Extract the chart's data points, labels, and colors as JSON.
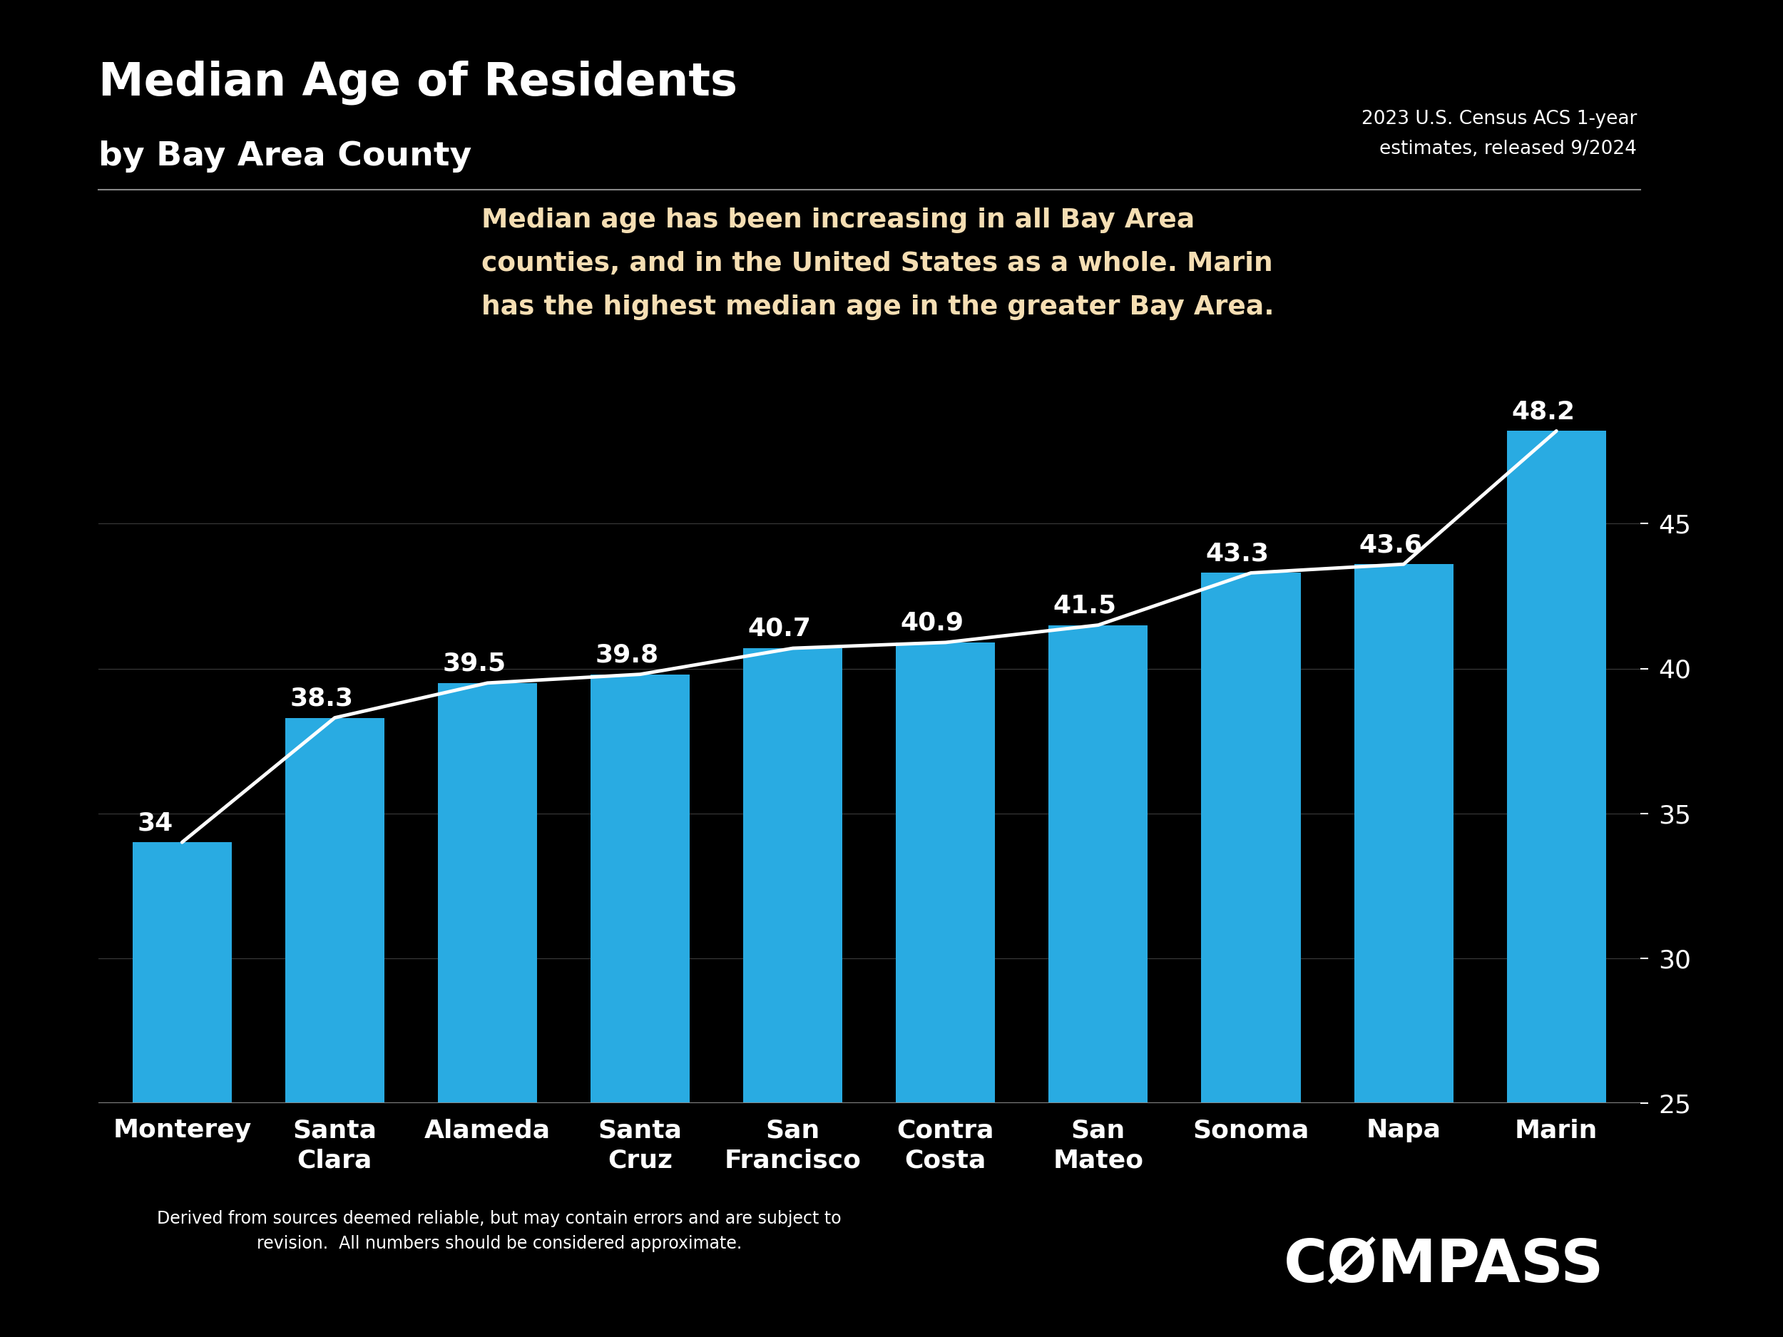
{
  "title_line1": "Median Age of Residents",
  "title_line2": "by Bay Area County",
  "source_text": "2023 U.S. Census ACS 1-year\nestimates, released 9/2024",
  "annotation": "Median age has been increasing in all Bay Area\ncounties, and in the United States as a whole. Marin\nhas the highest median age in the greater Bay Area.",
  "disclaimer": "Derived from sources deemed reliable, but may contain errors and are subject to\nrevision.  All numbers should be considered approximate.",
  "compass_text": "CØMPASS",
  "categories": [
    "Monterey",
    "Santa\nClara",
    "Alameda",
    "Santa\nCruz",
    "San\nFrancisco",
    "Contra\nCosta",
    "San\nMateo",
    "Sonoma",
    "Napa",
    "Marin"
  ],
  "values": [
    34,
    38.3,
    39.5,
    39.8,
    40.7,
    40.9,
    41.5,
    43.3,
    43.6,
    48.2
  ],
  "value_labels": [
    "34",
    "38.3",
    "39.5",
    "39.8",
    "40.7",
    "40.9",
    "41.5",
    "43.3",
    "43.6",
    "48.2"
  ],
  "bar_color": "#29ABE2",
  "line_color": "#FFFFFF",
  "background_color": "#000000",
  "text_color": "#FFFFFF",
  "annotation_color": "#F5DEB3",
  "grid_color": "#555555",
  "ylim_min": 25,
  "ylim_max": 50,
  "yticks": [
    25,
    30,
    35,
    40,
    45
  ],
  "title_fontsize": 46,
  "subtitle_fontsize": 34,
  "value_label_fontsize": 26,
  "tick_fontsize": 26,
  "annotation_fontsize": 27,
  "source_fontsize": 19,
  "disclaimer_fontsize": 17,
  "compass_fontsize": 60,
  "bar_width": 0.65
}
